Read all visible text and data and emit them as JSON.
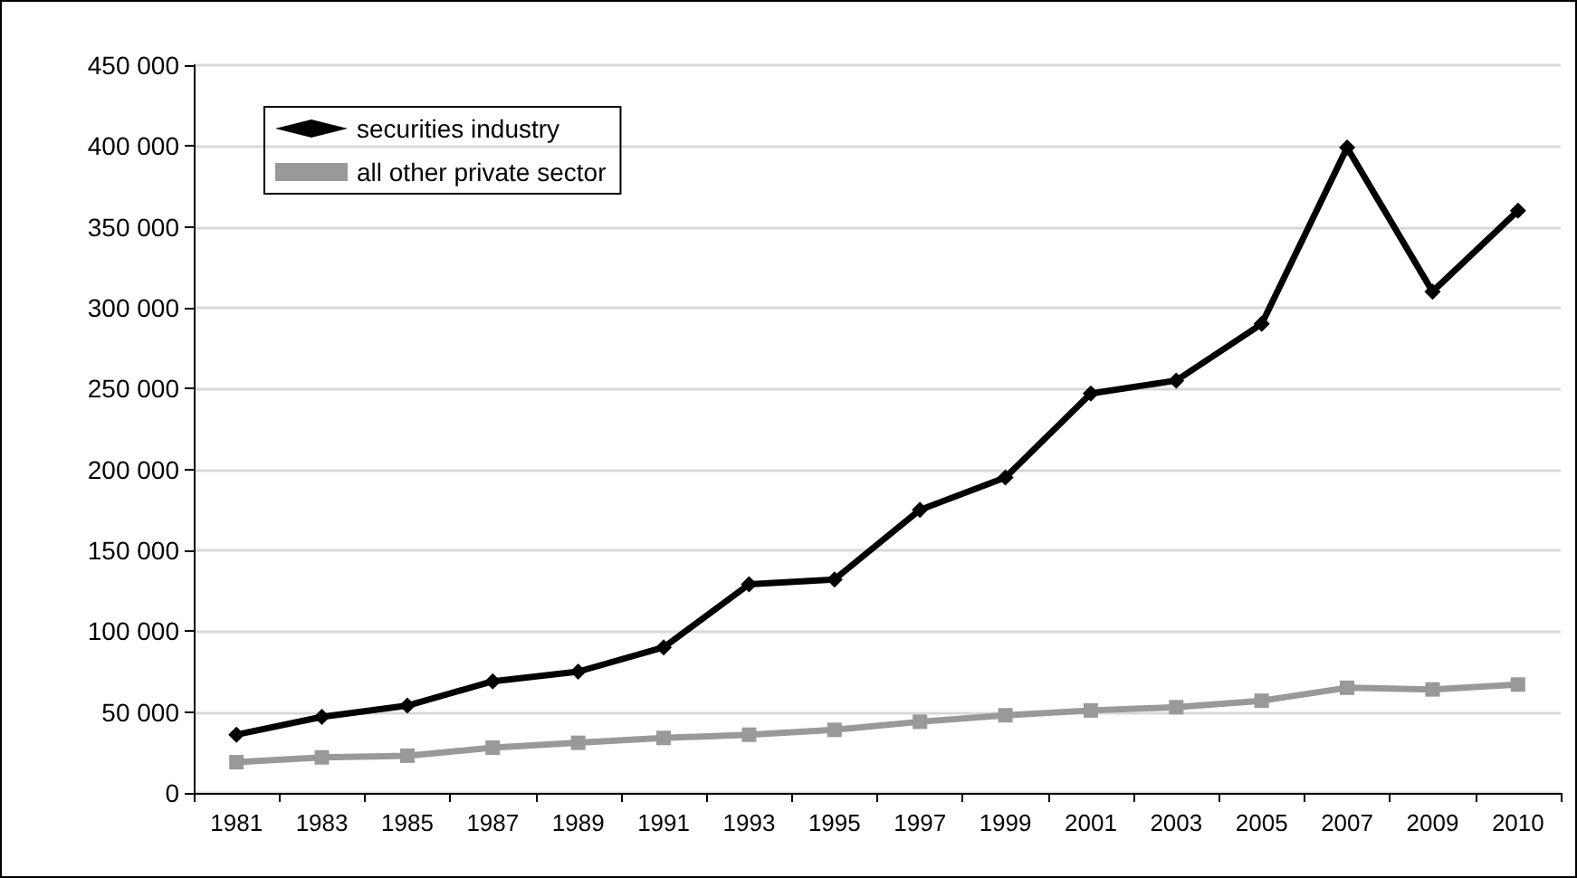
{
  "chart_data": {
    "type": "line",
    "categories": [
      "1981",
      "1983",
      "1985",
      "1987",
      "1989",
      "1991",
      "1993",
      "1995",
      "1997",
      "1999",
      "2001",
      "2003",
      "2005",
      "2007",
      "2009",
      "2010"
    ],
    "series": [
      {
        "name": "securities industry",
        "color": "#000000",
        "marker": "diamond",
        "values": [
          36000,
          47000,
          54000,
          69000,
          75000,
          90000,
          129000,
          132000,
          175000,
          195000,
          247000,
          255000,
          290000,
          399000,
          310000,
          360000
        ]
      },
      {
        "name": "all other private sector",
        "color": "#999999",
        "marker": "square",
        "values": [
          19000,
          22000,
          23000,
          28000,
          31000,
          34000,
          36000,
          39000,
          44000,
          48000,
          51000,
          53000,
          57000,
          65000,
          64000,
          67000
        ]
      }
    ],
    "ylim": [
      0,
      450000
    ],
    "yticks": [
      0,
      50000,
      100000,
      150000,
      200000,
      250000,
      300000,
      350000,
      400000,
      450000
    ],
    "grid": "y",
    "legend": "top left",
    "line_style": "solid"
  }
}
